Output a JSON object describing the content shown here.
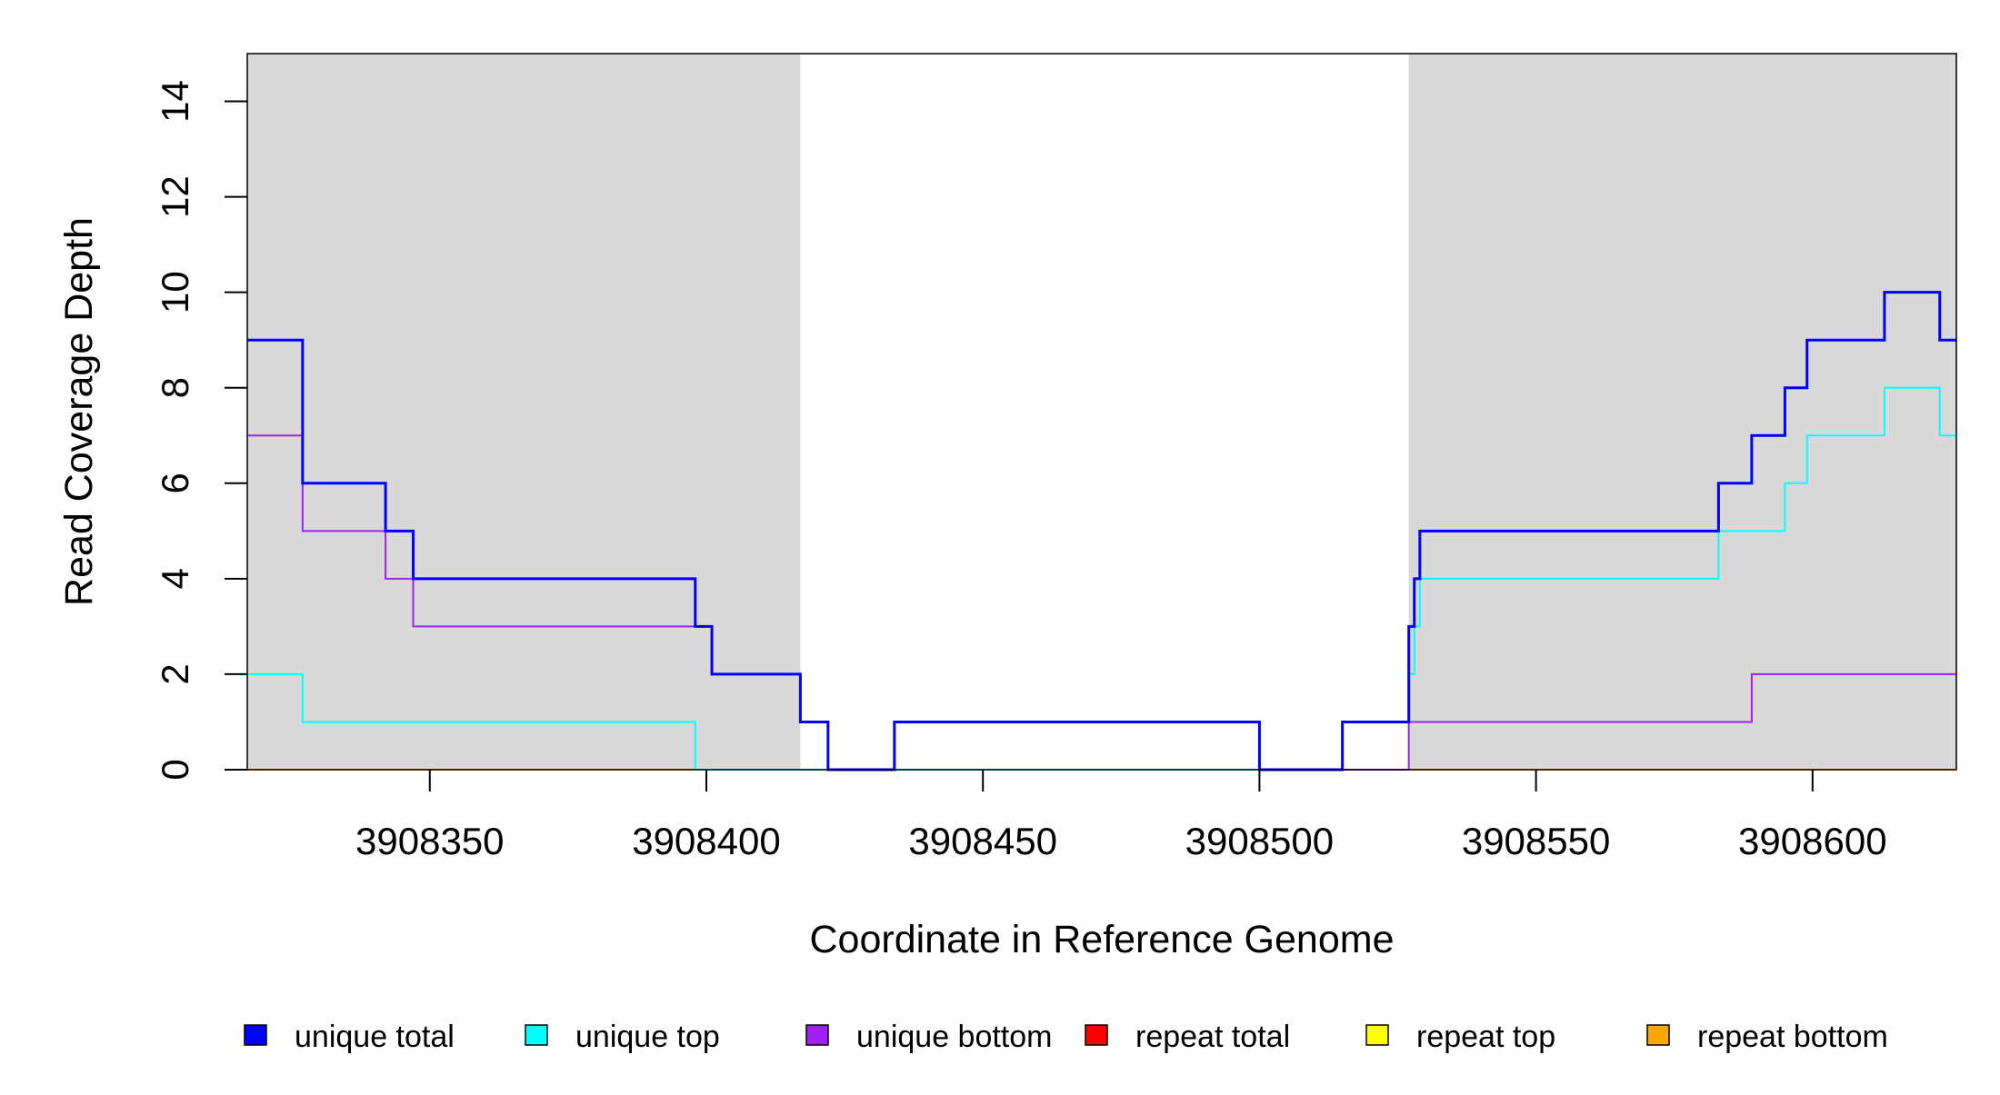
{
  "chart_data": {
    "type": "line",
    "step": true,
    "title": "",
    "xlabel": "Coordinate in Reference Genome",
    "ylabel": "Read Coverage Depth",
    "xlim": [
      3908317,
      3908626
    ],
    "ylim": [
      0,
      15
    ],
    "xticks": [
      3908350,
      3908400,
      3908450,
      3908500,
      3908550,
      3908600
    ],
    "xtick_labels": [
      "3908350",
      "3908400",
      "3908450",
      "3908500",
      "3908550",
      "3908600"
    ],
    "yticks": [
      0,
      2,
      4,
      6,
      8,
      10,
      12,
      14
    ],
    "ytick_labels": [
      "0",
      "2",
      "4",
      "6",
      "8",
      "10",
      "12",
      "14"
    ],
    "shaded_regions": [
      [
        3908317,
        3908417
      ],
      [
        3908527,
        3908626
      ]
    ],
    "shade_color": "#d9d9d9",
    "x_breaks": [
      3908317,
      3908327,
      3908342,
      3908347,
      3908398,
      3908401,
      3908417,
      3908422,
      3908434,
      3908500,
      3908515,
      3908527,
      3908528,
      3908529,
      3908583,
      3908589,
      3908595,
      3908599,
      3908613,
      3908623,
      3908626
    ],
    "series": [
      {
        "name": "unique total",
        "color": "#0000ff",
        "width": 3,
        "values": [
          9,
          6,
          5,
          4,
          3,
          2,
          1,
          0,
          1,
          0,
          1,
          3,
          4,
          5,
          6,
          7,
          8,
          9,
          10,
          9
        ]
      },
      {
        "name": "unique top",
        "color": "#00ffff",
        "width": 2,
        "values": [
          2,
          1,
          1,
          1,
          0,
          0,
          0,
          0,
          0,
          0,
          1,
          2,
          3,
          4,
          5,
          5,
          6,
          7,
          8,
          7
        ]
      },
      {
        "name": "unique bottom",
        "color": "#a020f0",
        "width": 2,
        "values": [
          7,
          5,
          4,
          3,
          3,
          2,
          1,
          0,
          1,
          0,
          0,
          1,
          1,
          1,
          1,
          2,
          2,
          2,
          2,
          2
        ]
      },
      {
        "name": "repeat total",
        "color": "#ff0000",
        "width": 2,
        "values": [
          0,
          0,
          0,
          0,
          0,
          0,
          0,
          0,
          0,
          0,
          0,
          0,
          0,
          0,
          0,
          0,
          0,
          0,
          0,
          0
        ]
      },
      {
        "name": "repeat top",
        "color": "#ffff00",
        "width": 2,
        "values": [
          0,
          0,
          0,
          0,
          0,
          0,
          0,
          0,
          0,
          0,
          0,
          0,
          0,
          0,
          0,
          0,
          0,
          0,
          0,
          0
        ]
      },
      {
        "name": "repeat bottom",
        "color": "#ffa500",
        "width": 2,
        "values": [
          0,
          0,
          0,
          0,
          0,
          0,
          0,
          0,
          0,
          0,
          0,
          0,
          0,
          0,
          0,
          0,
          0,
          0,
          0,
          0
        ]
      }
    ],
    "legend": {
      "placement": "bottom",
      "entries": [
        "unique total",
        "unique top",
        "unique bottom",
        "repeat total",
        "repeat top",
        "repeat bottom"
      ]
    }
  }
}
